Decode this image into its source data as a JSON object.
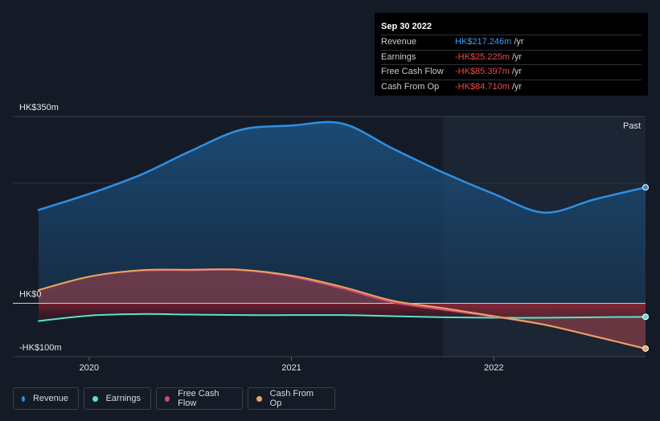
{
  "tooltip": {
    "date": "Sep 30 2022",
    "rows": [
      {
        "label": "Revenue",
        "value": "HK$217.246m",
        "unit": "/yr",
        "color": "#3e9bf0"
      },
      {
        "label": "Earnings",
        "value": "-HK$25.225m",
        "unit": "/yr",
        "color": "#ee4b4b"
      },
      {
        "label": "Free Cash Flow",
        "value": "-HK$85.397m",
        "unit": "/yr",
        "color": "#ee4b4b"
      },
      {
        "label": "Cash From Op",
        "value": "-HK$84.710m",
        "unit": "/yr",
        "color": "#ee4b4b"
      }
    ]
  },
  "legend": [
    {
      "label": "Revenue",
      "color": "#2f8fe3"
    },
    {
      "label": "Earnings",
      "color": "#5de0cc"
    },
    {
      "label": "Free Cash Flow",
      "color": "#d4467e"
    },
    {
      "label": "Cash From Op",
      "color": "#e9a55f"
    }
  ],
  "chart_data": {
    "type": "area",
    "past_label": "Past",
    "y_ticks": [
      {
        "value": 350,
        "label": "HK$350m"
      },
      {
        "value": 0,
        "label": "HK$0"
      },
      {
        "value": -100,
        "label": "-HK$100m"
      }
    ],
    "x_ticks": [
      {
        "value": 2020.0,
        "label": "2020"
      },
      {
        "value": 2021.0,
        "label": "2021"
      },
      {
        "value": 2022.0,
        "label": "2022"
      }
    ],
    "xlim": [
      2019.75,
      2022.75
    ],
    "ylim": [
      -100,
      350
    ],
    "past_start": 2021.75,
    "series": [
      {
        "name": "Revenue",
        "color": "#2f8fe3",
        "x": [
          2019.75,
          2020.0,
          2020.25,
          2020.5,
          2020.75,
          2021.0,
          2021.25,
          2021.5,
          2021.75,
          2022.0,
          2022.25,
          2022.5,
          2022.75
        ],
        "y": [
          175,
          205,
          240,
          285,
          325,
          333,
          337,
          290,
          245,
          205,
          170,
          195,
          217.246
        ]
      },
      {
        "name": "Earnings",
        "color": "#5de0cc",
        "x": [
          2019.75,
          2020.0,
          2020.25,
          2020.5,
          2020.75,
          2021.0,
          2021.25,
          2021.5,
          2021.75,
          2022.0,
          2022.25,
          2022.5,
          2022.75
        ],
        "y": [
          -33,
          -23,
          -20,
          -21,
          -22,
          -22,
          -22,
          -24,
          -26,
          -27,
          -27,
          -26,
          -25.225
        ]
      },
      {
        "name": "Free Cash Flow",
        "color": "#d4467e",
        "x": [
          2019.75,
          2020.0,
          2020.25,
          2020.5,
          2020.75,
          2021.0,
          2021.25,
          2021.5,
          2021.75,
          2022.0,
          2022.25,
          2022.5,
          2022.75
        ],
        "y": [
          25,
          50,
          61,
          62,
          62,
          50,
          28,
          2,
          -12,
          -25,
          -40,
          -62,
          -85.397
        ]
      },
      {
        "name": "Cash From Op",
        "color": "#e9a55f",
        "x": [
          2019.75,
          2020.0,
          2020.25,
          2020.5,
          2020.75,
          2021.0,
          2021.25,
          2021.5,
          2021.75,
          2022.0,
          2022.25,
          2022.5,
          2022.75
        ],
        "y": [
          25,
          50,
          62,
          63,
          63,
          52,
          31,
          5,
          -9,
          -24,
          -40,
          -62,
          -84.71
        ]
      }
    ]
  }
}
